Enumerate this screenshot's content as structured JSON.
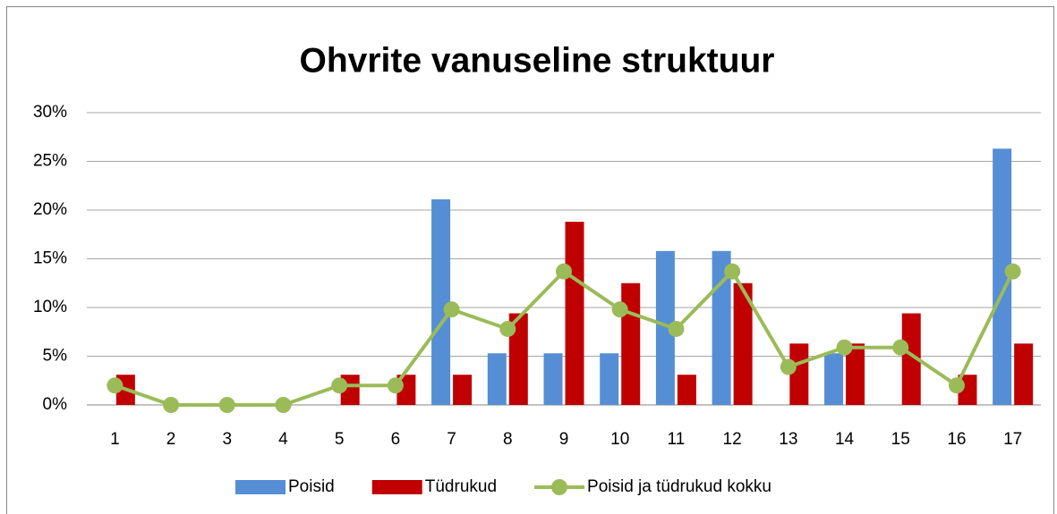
{
  "chart_data": {
    "type": "bar",
    "title": "Ohvrite vanuseline struktuur",
    "categories": [
      "1",
      "2",
      "3",
      "4",
      "5",
      "6",
      "7",
      "8",
      "9",
      "10",
      "11",
      "12",
      "13",
      "14",
      "15",
      "16",
      "17"
    ],
    "series": [
      {
        "name": "Poisid",
        "color": "#558ed5",
        "type": "bar",
        "values": [
          0,
          0,
          0,
          0,
          0,
          0,
          21.1,
          5.3,
          5.3,
          5.3,
          15.8,
          15.8,
          0,
          5.3,
          0,
          0,
          26.3
        ]
      },
      {
        "name": "Tüdrukud",
        "color": "#c00000",
        "type": "bar",
        "values": [
          3.1,
          0,
          0,
          0,
          3.1,
          3.1,
          3.1,
          9.4,
          18.8,
          12.5,
          3.1,
          12.5,
          6.3,
          6.3,
          9.4,
          3.1,
          6.3
        ]
      },
      {
        "name": "Poisid ja tüdrukud kokku",
        "color": "#9bbb59",
        "type": "line",
        "values": [
          2.0,
          0,
          0,
          0,
          2.0,
          2.0,
          9.8,
          7.8,
          13.7,
          9.8,
          7.8,
          13.7,
          3.9,
          5.9,
          5.9,
          2.0,
          13.7
        ]
      }
    ],
    "ylim": [
      0,
      30
    ],
    "yticks": [
      {
        "value": 0,
        "label": "0%"
      },
      {
        "value": 5,
        "label": "5%"
      },
      {
        "value": 10,
        "label": "10%"
      },
      {
        "value": 15,
        "label": "15%"
      },
      {
        "value": 20,
        "label": "20%"
      },
      {
        "value": 25,
        "label": "25%"
      },
      {
        "value": 30,
        "label": "30%"
      }
    ],
    "grid": true,
    "legend": "bottom"
  }
}
